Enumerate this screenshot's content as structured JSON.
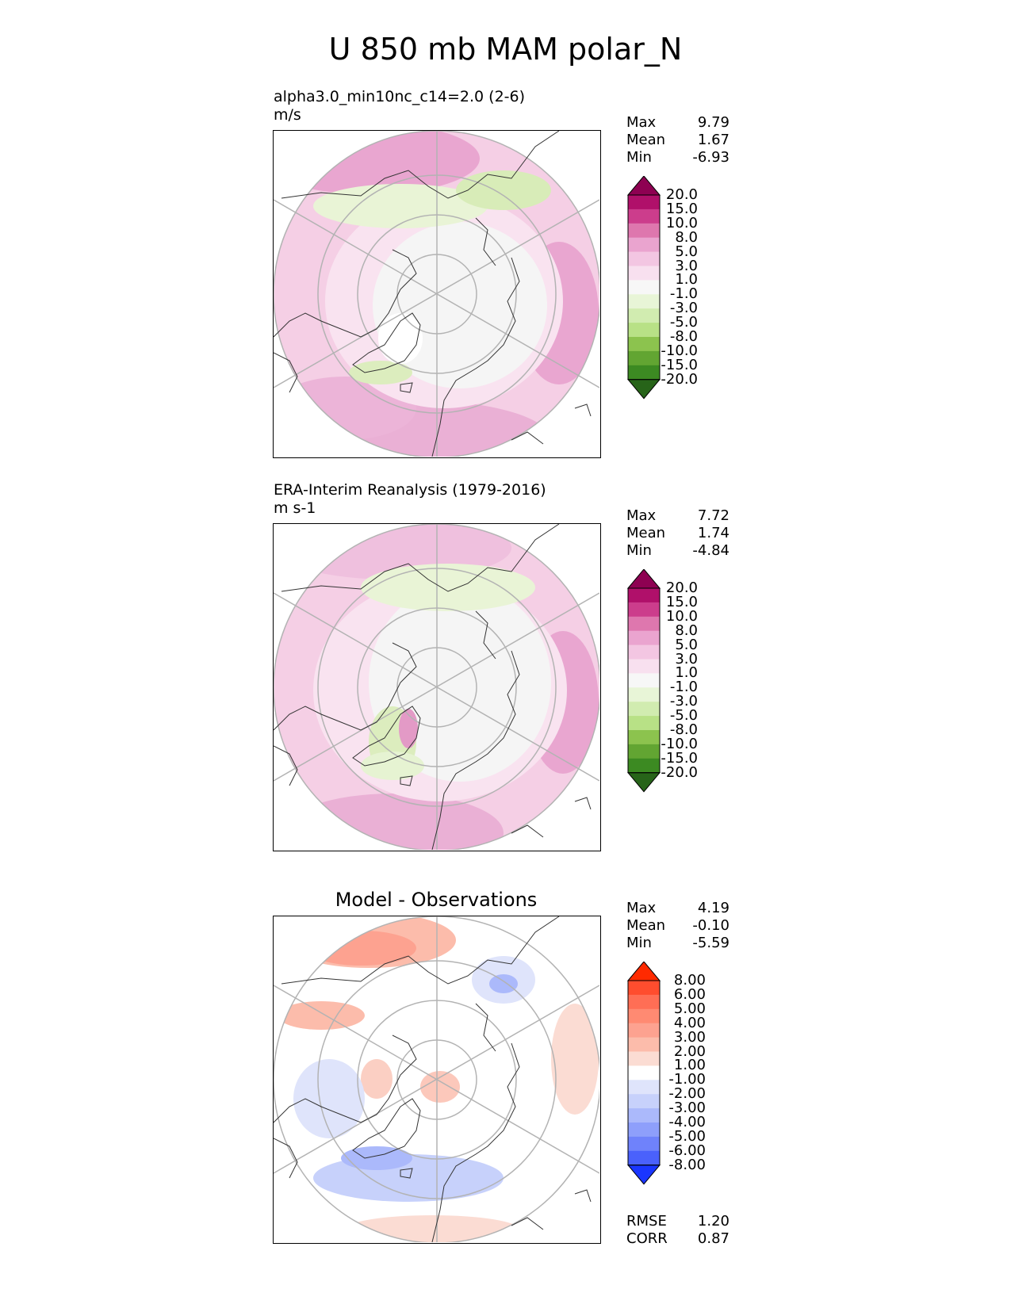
{
  "main_title": "U 850 mb MAM polar_N",
  "panels": [
    {
      "title_line1": "alpha3.0_min10nc_c14=2.0 (2-6)",
      "title_line2": "m/s",
      "stats": {
        "max_label": "Max",
        "max": "9.79",
        "mean_label": "Mean",
        "mean": "1.67",
        "min_label": "Min",
        "min": "-6.93"
      },
      "scheme": "piyg"
    },
    {
      "title_line1": "ERA-Interim Reanalysis (1979-2016)",
      "title_line2": "m s-1",
      "stats": {
        "max_label": "Max",
        "max": "7.72",
        "mean_label": "Mean",
        "mean": "1.74",
        "min_label": "Min",
        "min": "-4.84"
      },
      "scheme": "piyg"
    },
    {
      "title_center": "Model - Observations",
      "stats": {
        "max_label": "Max",
        "max": "4.19",
        "mean_label": "Mean",
        "mean": "-0.10",
        "min_label": "Min",
        "min": "-5.59"
      },
      "scheme": "diff",
      "metrics": {
        "rmse_label": "RMSE",
        "rmse": "1.20",
        "corr_label": "CORR",
        "corr": "0.87"
      }
    }
  ],
  "colorbars": {
    "piyg": {
      "levels": [
        "20.0",
        "15.0",
        "10.0",
        "8.0",
        "5.0",
        "3.0",
        "1.0",
        "-1.0",
        "-3.0",
        "-5.0",
        "-8.0",
        "-10.0",
        "-15.0",
        "-20.0"
      ],
      "colors": [
        "#8e0152",
        "#b0106a",
        "#cc3d8c",
        "#de77ae",
        "#eaa4cf",
        "#f3c6e2",
        "#f8e0ef",
        "#f7f7f7",
        "#e8f5d7",
        "#d1ecb0",
        "#b8e186",
        "#8cc34e",
        "#62a532",
        "#3c8a22",
        "#276419"
      ]
    },
    "diff": {
      "levels": [
        "8.00",
        "6.00",
        "5.00",
        "4.00",
        "3.00",
        "2.00",
        "1.00",
        "-1.00",
        "-2.00",
        "-3.00",
        "-4.00",
        "-5.00",
        "-6.00",
        "-8.00"
      ],
      "colors": [
        "#ff2a00",
        "#ff4d2e",
        "#ff6e55",
        "#ff8a72",
        "#fda290",
        "#fcbcab",
        "#fbdcd3",
        "#ffffff",
        "#dfe4fb",
        "#c7d1fb",
        "#abb9fb",
        "#8e9ffb",
        "#6f82fb",
        "#4a61fc",
        "#1a36ff"
      ]
    }
  },
  "chart_data": [
    {
      "type": "heatmap",
      "projection": "north polar stereographic",
      "title": "alpha3.0_min10nc_c14=2.0 (2-6)",
      "units": "m/s",
      "variable": "U 850 mb MAM polar_N",
      "max": 9.79,
      "mean": 1.67,
      "min": -6.93,
      "contour_levels": [
        -20,
        -15,
        -10,
        -8,
        -5,
        -3,
        -1,
        1,
        3,
        5,
        8,
        10,
        15,
        20
      ]
    },
    {
      "type": "heatmap",
      "projection": "north polar stereographic",
      "title": "ERA-Interim Reanalysis (1979-2016)",
      "units": "m s-1",
      "max": 7.72,
      "mean": 1.74,
      "min": -4.84,
      "contour_levels": [
        -20,
        -15,
        -10,
        -8,
        -5,
        -3,
        -1,
        1,
        3,
        5,
        8,
        10,
        15,
        20
      ]
    },
    {
      "type": "heatmap",
      "projection": "north polar stereographic",
      "title": "Model - Observations",
      "max": 4.19,
      "mean": -0.1,
      "min": -5.59,
      "rmse": 1.2,
      "corr": 0.87,
      "contour_levels": [
        -8,
        -6,
        -5,
        -4,
        -3,
        -2,
        -1,
        1,
        2,
        3,
        4,
        5,
        6,
        8
      ]
    }
  ]
}
